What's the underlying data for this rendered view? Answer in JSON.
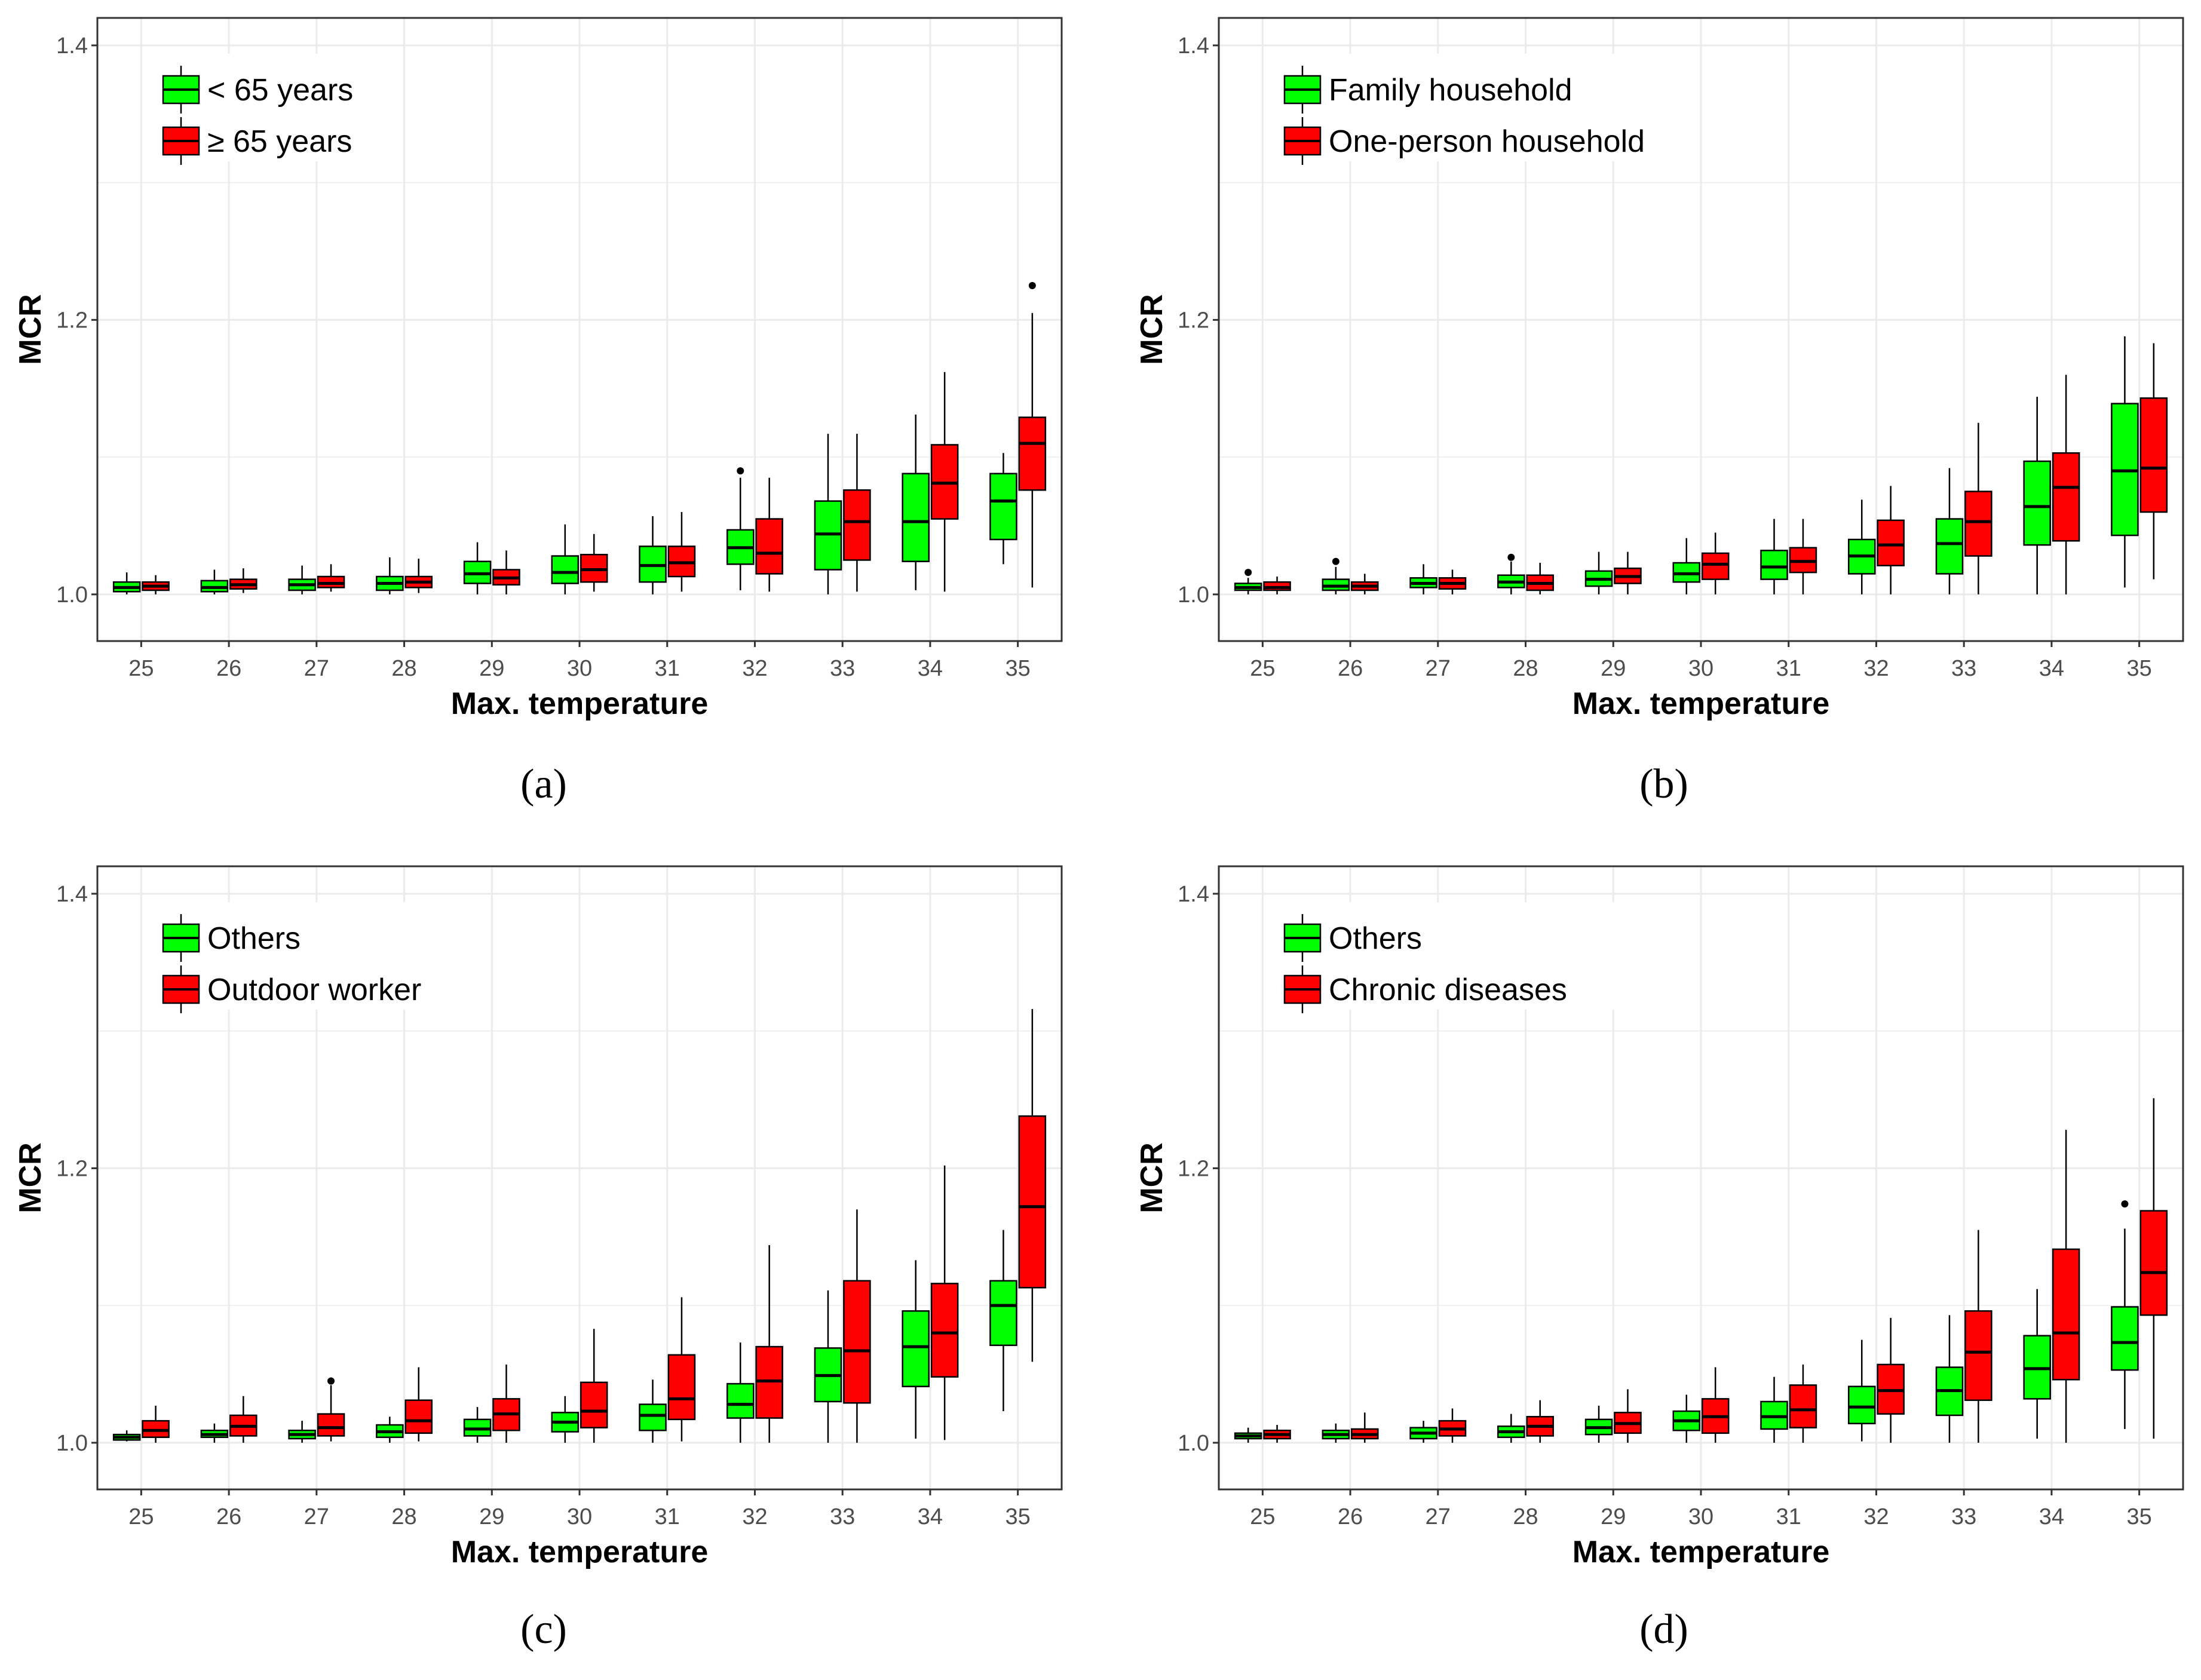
{
  "colors": {
    "group1": "#00ff00",
    "group2": "#ff0000",
    "grid": "#ebebeb",
    "frame": "#333333"
  },
  "chart_data": [
    {
      "type": "box",
      "caption": "(a)",
      "xlabel": "Max. temperature",
      "ylabel": "MCR",
      "ylim": [
        0.966,
        1.42
      ],
      "yticks": [
        "1.0",
        "1.2",
        "1.4"
      ],
      "categories": [
        "25",
        "26",
        "27",
        "28",
        "29",
        "30",
        "31",
        "32",
        "33",
        "34",
        "35"
      ],
      "series": [
        {
          "name": "< 65 years",
          "boxes": [
            {
              "min": 1.0,
              "q1": 1.002,
              "median": 1.005,
              "q3": 1.009,
              "max": 1.016
            },
            {
              "min": 1.0,
              "q1": 1.002,
              "median": 1.005,
              "q3": 1.01,
              "max": 1.018
            },
            {
              "min": 1.0,
              "q1": 1.003,
              "median": 1.007,
              "q3": 1.011,
              "max": 1.021
            },
            {
              "min": 1.0,
              "q1": 1.003,
              "median": 1.008,
              "q3": 1.013,
              "max": 1.027
            },
            {
              "min": 1.0,
              "q1": 1.008,
              "median": 1.015,
              "q3": 1.024,
              "max": 1.038
            },
            {
              "min": 1.0,
              "q1": 1.008,
              "median": 1.016,
              "q3": 1.028,
              "max": 1.051
            },
            {
              "min": 1.0,
              "q1": 1.009,
              "median": 1.021,
              "q3": 1.035,
              "max": 1.057
            },
            {
              "min": 1.003,
              "q1": 1.022,
              "median": 1.034,
              "q3": 1.047,
              "max": 1.085,
              "outliers": [
                1.09
              ]
            },
            {
              "min": 1.0,
              "q1": 1.018,
              "median": 1.044,
              "q3": 1.068,
              "max": 1.117
            },
            {
              "min": 1.003,
              "q1": 1.024,
              "median": 1.053,
              "q3": 1.088,
              "max": 1.131
            },
            {
              "min": 1.022,
              "q1": 1.04,
              "median": 1.068,
              "q3": 1.088,
              "max": 1.103
            }
          ]
        },
        {
          "name": "≥ 65 years",
          "boxes": [
            {
              "min": 1.0,
              "q1": 1.003,
              "median": 1.006,
              "q3": 1.009,
              "max": 1.014
            },
            {
              "min": 1.001,
              "q1": 1.004,
              "median": 1.007,
              "q3": 1.011,
              "max": 1.019
            },
            {
              "min": 1.002,
              "q1": 1.005,
              "median": 1.008,
              "q3": 1.013,
              "max": 1.022
            },
            {
              "min": 1.001,
              "q1": 1.005,
              "median": 1.009,
              "q3": 1.013,
              "max": 1.026
            },
            {
              "min": 1.0,
              "q1": 1.007,
              "median": 1.012,
              "q3": 1.018,
              "max": 1.032
            },
            {
              "min": 1.002,
              "q1": 1.009,
              "median": 1.018,
              "q3": 1.029,
              "max": 1.044
            },
            {
              "min": 1.002,
              "q1": 1.013,
              "median": 1.023,
              "q3": 1.035,
              "max": 1.06
            },
            {
              "min": 1.002,
              "q1": 1.015,
              "median": 1.03,
              "q3": 1.055,
              "max": 1.085
            },
            {
              "min": 1.002,
              "q1": 1.025,
              "median": 1.053,
              "q3": 1.076,
              "max": 1.117
            },
            {
              "min": 1.002,
              "q1": 1.055,
              "median": 1.081,
              "q3": 1.109,
              "max": 1.162
            },
            {
              "min": 1.005,
              "q1": 1.076,
              "median": 1.11,
              "q3": 1.129,
              "max": 1.205,
              "outliers": [
                1.225
              ]
            }
          ]
        }
      ]
    },
    {
      "type": "box",
      "caption": "(b)",
      "xlabel": "Max. temperature",
      "ylabel": "MCR",
      "ylim": [
        0.966,
        1.42
      ],
      "yticks": [
        "1.0",
        "1.2",
        "1.4"
      ],
      "categories": [
        "25",
        "26",
        "27",
        "28",
        "29",
        "30",
        "31",
        "32",
        "33",
        "34",
        "35"
      ],
      "series": [
        {
          "name": "Family household",
          "boxes": [
            {
              "min": 1.0,
              "q1": 1.003,
              "median": 1.005,
              "q3": 1.008,
              "max": 1.012,
              "outliers": [
                1.016
              ]
            },
            {
              "min": 1.0,
              "q1": 1.003,
              "median": 1.006,
              "q3": 1.011,
              "max": 1.02,
              "outliers": [
                1.024
              ]
            },
            {
              "min": 1.0,
              "q1": 1.005,
              "median": 1.008,
              "q3": 1.012,
              "max": 1.022
            },
            {
              "min": 1.0,
              "q1": 1.005,
              "median": 1.009,
              "q3": 1.014,
              "max": 1.024,
              "outliers": [
                1.027
              ]
            },
            {
              "min": 1.0,
              "q1": 1.006,
              "median": 1.011,
              "q3": 1.017,
              "max": 1.031
            },
            {
              "min": 1.0,
              "q1": 1.009,
              "median": 1.015,
              "q3": 1.023,
              "max": 1.041
            },
            {
              "min": 1.0,
              "q1": 1.011,
              "median": 1.02,
              "q3": 1.032,
              "max": 1.055
            },
            {
              "min": 1.0,
              "q1": 1.015,
              "median": 1.028,
              "q3": 1.04,
              "max": 1.069
            },
            {
              "min": 1.0,
              "q1": 1.015,
              "median": 1.037,
              "q3": 1.055,
              "max": 1.092
            },
            {
              "min": 1.0,
              "q1": 1.036,
              "median": 1.064,
              "q3": 1.097,
              "max": 1.144
            },
            {
              "min": 1.005,
              "q1": 1.043,
              "median": 1.09,
              "q3": 1.139,
              "max": 1.188
            }
          ]
        },
        {
          "name": "One-person household",
          "boxes": [
            {
              "min": 1.0,
              "q1": 1.003,
              "median": 1.005,
              "q3": 1.009,
              "max": 1.013
            },
            {
              "min": 1.0,
              "q1": 1.003,
              "median": 1.006,
              "q3": 1.009,
              "max": 1.015
            },
            {
              "min": 1.0,
              "q1": 1.004,
              "median": 1.008,
              "q3": 1.012,
              "max": 1.018
            },
            {
              "min": 1.0,
              "q1": 1.003,
              "median": 1.008,
              "q3": 1.014,
              "max": 1.023
            },
            {
              "min": 1.0,
              "q1": 1.008,
              "median": 1.013,
              "q3": 1.019,
              "max": 1.031
            },
            {
              "min": 1.0,
              "q1": 1.011,
              "median": 1.022,
              "q3": 1.03,
              "max": 1.045
            },
            {
              "min": 1.0,
              "q1": 1.016,
              "median": 1.024,
              "q3": 1.034,
              "max": 1.055
            },
            {
              "min": 1.0,
              "q1": 1.021,
              "median": 1.036,
              "q3": 1.054,
              "max": 1.079
            },
            {
              "min": 1.0,
              "q1": 1.028,
              "median": 1.053,
              "q3": 1.075,
              "max": 1.125
            },
            {
              "min": 1.0,
              "q1": 1.039,
              "median": 1.078,
              "q3": 1.103,
              "max": 1.16
            },
            {
              "min": 1.011,
              "q1": 1.06,
              "median": 1.092,
              "q3": 1.143,
              "max": 1.183
            }
          ]
        }
      ]
    },
    {
      "type": "box",
      "caption": "(c)",
      "xlabel": "Max. temperature",
      "ylabel": "MCR",
      "ylim": [
        0.966,
        1.42
      ],
      "yticks": [
        "1.0",
        "1.2",
        "1.4"
      ],
      "categories": [
        "25",
        "26",
        "27",
        "28",
        "29",
        "30",
        "31",
        "32",
        "33",
        "34",
        "35"
      ],
      "series": [
        {
          "name": "Others",
          "boxes": [
            {
              "min": 1.001,
              "q1": 1.002,
              "median": 1.004,
              "q3": 1.006,
              "max": 1.009
            },
            {
              "min": 1.0,
              "q1": 1.004,
              "median": 1.006,
              "q3": 1.009,
              "max": 1.014
            },
            {
              "min": 1.0,
              "q1": 1.003,
              "median": 1.006,
              "q3": 1.009,
              "max": 1.016
            },
            {
              "min": 1.0,
              "q1": 1.004,
              "median": 1.008,
              "q3": 1.013,
              "max": 1.019
            },
            {
              "min": 1.0,
              "q1": 1.005,
              "median": 1.01,
              "q3": 1.017,
              "max": 1.026
            },
            {
              "min": 1.0,
              "q1": 1.008,
              "median": 1.015,
              "q3": 1.022,
              "max": 1.034
            },
            {
              "min": 1.0,
              "q1": 1.009,
              "median": 1.02,
              "q3": 1.028,
              "max": 1.046
            },
            {
              "min": 1.0,
              "q1": 1.018,
              "median": 1.028,
              "q3": 1.043,
              "max": 1.073
            },
            {
              "min": 1.0,
              "q1": 1.03,
              "median": 1.049,
              "q3": 1.069,
              "max": 1.111
            },
            {
              "min": 1.003,
              "q1": 1.041,
              "median": 1.07,
              "q3": 1.096,
              "max": 1.133
            },
            {
              "min": 1.023,
              "q1": 1.071,
              "median": 1.1,
              "q3": 1.118,
              "max": 1.155
            }
          ]
        },
        {
          "name": "Outdoor worker",
          "boxes": [
            {
              "min": 1.0,
              "q1": 1.004,
              "median": 1.009,
              "q3": 1.016,
              "max": 1.027
            },
            {
              "min": 1.0,
              "q1": 1.005,
              "median": 1.012,
              "q3": 1.02,
              "max": 1.034
            },
            {
              "min": 1.001,
              "q1": 1.005,
              "median": 1.011,
              "q3": 1.021,
              "max": 1.042,
              "outliers": [
                1.045
              ]
            },
            {
              "min": 1.001,
              "q1": 1.007,
              "median": 1.016,
              "q3": 1.031,
              "max": 1.055
            },
            {
              "min": 1.0,
              "q1": 1.009,
              "median": 1.021,
              "q3": 1.032,
              "max": 1.057
            },
            {
              "min": 1.0,
              "q1": 1.011,
              "median": 1.023,
              "q3": 1.044,
              "max": 1.083
            },
            {
              "min": 1.001,
              "q1": 1.017,
              "median": 1.032,
              "q3": 1.064,
              "max": 1.106
            },
            {
              "min": 1.0,
              "q1": 1.018,
              "median": 1.045,
              "q3": 1.07,
              "max": 1.144
            },
            {
              "min": 1.0,
              "q1": 1.029,
              "median": 1.067,
              "q3": 1.118,
              "max": 1.17
            },
            {
              "min": 1.002,
              "q1": 1.048,
              "median": 1.08,
              "q3": 1.116,
              "max": 1.202
            },
            {
              "min": 1.059,
              "q1": 1.113,
              "median": 1.172,
              "q3": 1.238,
              "max": 1.316
            }
          ]
        }
      ]
    },
    {
      "type": "box",
      "caption": "(d)",
      "xlabel": "Max. temperature",
      "ylabel": "MCR",
      "ylim": [
        0.966,
        1.42
      ],
      "yticks": [
        "1.0",
        "1.2",
        "1.4"
      ],
      "categories": [
        "25",
        "26",
        "27",
        "28",
        "29",
        "30",
        "31",
        "32",
        "33",
        "34",
        "35"
      ],
      "series": [
        {
          "name": "Others",
          "boxes": [
            {
              "min": 1.0,
              "q1": 1.003,
              "median": 1.005,
              "q3": 1.007,
              "max": 1.011
            },
            {
              "min": 1.0,
              "q1": 1.003,
              "median": 1.006,
              "q3": 1.009,
              "max": 1.014
            },
            {
              "min": 1.0,
              "q1": 1.003,
              "median": 1.007,
              "q3": 1.011,
              "max": 1.016
            },
            {
              "min": 1.0,
              "q1": 1.004,
              "median": 1.008,
              "q3": 1.012,
              "max": 1.021
            },
            {
              "min": 1.0,
              "q1": 1.006,
              "median": 1.011,
              "q3": 1.017,
              "max": 1.027
            },
            {
              "min": 1.0,
              "q1": 1.009,
              "median": 1.016,
              "q3": 1.023,
              "max": 1.035
            },
            {
              "min": 1.0,
              "q1": 1.01,
              "median": 1.019,
              "q3": 1.03,
              "max": 1.048
            },
            {
              "min": 1.001,
              "q1": 1.014,
              "median": 1.026,
              "q3": 1.041,
              "max": 1.075
            },
            {
              "min": 1.0,
              "q1": 1.02,
              "median": 1.038,
              "q3": 1.055,
              "max": 1.093
            },
            {
              "min": 1.003,
              "q1": 1.032,
              "median": 1.054,
              "q3": 1.078,
              "max": 1.112
            },
            {
              "min": 1.01,
              "q1": 1.053,
              "median": 1.073,
              "q3": 1.099,
              "max": 1.156,
              "outliers": [
                1.174
              ]
            }
          ]
        },
        {
          "name": "Chronic diseases",
          "boxes": [
            {
              "min": 1.0,
              "q1": 1.003,
              "median": 1.006,
              "q3": 1.009,
              "max": 1.013
            },
            {
              "min": 1.0,
              "q1": 1.003,
              "median": 1.006,
              "q3": 1.01,
              "max": 1.022
            },
            {
              "min": 1.0,
              "q1": 1.005,
              "median": 1.01,
              "q3": 1.016,
              "max": 1.025
            },
            {
              "min": 1.0,
              "q1": 1.005,
              "median": 1.012,
              "q3": 1.019,
              "max": 1.031
            },
            {
              "min": 1.0,
              "q1": 1.007,
              "median": 1.014,
              "q3": 1.022,
              "max": 1.039
            },
            {
              "min": 1.0,
              "q1": 1.007,
              "median": 1.019,
              "q3": 1.032,
              "max": 1.055
            },
            {
              "min": 1.0,
              "q1": 1.011,
              "median": 1.024,
              "q3": 1.042,
              "max": 1.057
            },
            {
              "min": 1.0,
              "q1": 1.021,
              "median": 1.038,
              "q3": 1.057,
              "max": 1.091
            },
            {
              "min": 1.0,
              "q1": 1.031,
              "median": 1.066,
              "q3": 1.096,
              "max": 1.155
            },
            {
              "min": 1.0,
              "q1": 1.046,
              "median": 1.08,
              "q3": 1.141,
              "max": 1.228
            },
            {
              "min": 1.003,
              "q1": 1.093,
              "median": 1.124,
              "q3": 1.169,
              "max": 1.251
            }
          ]
        }
      ]
    }
  ]
}
